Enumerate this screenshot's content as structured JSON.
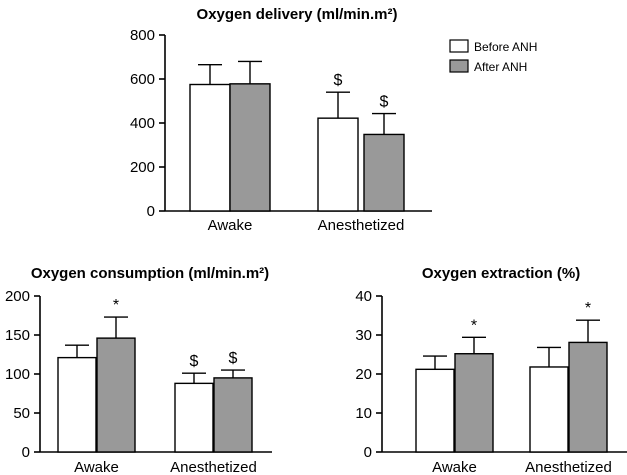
{
  "legend": {
    "series": [
      {
        "name": "Before ANH",
        "color": "#ffffff"
      },
      {
        "name": "After ANH",
        "color": "#999999"
      }
    ]
  },
  "chart_data": [
    {
      "type": "bar",
      "title": "Oxygen delivery (ml/min.m²)",
      "categories": [
        "Awake",
        "Anesthetized"
      ],
      "ylim": [
        0,
        800
      ],
      "yticks": [
        0,
        200,
        400,
        600,
        800
      ],
      "series": [
        {
          "name": "Before ANH",
          "values": [
            575,
            422
          ],
          "errors": [
            90,
            118
          ],
          "annotations": [
            "",
            "$"
          ]
        },
        {
          "name": "After ANH",
          "values": [
            578,
            348
          ],
          "errors": [
            102,
            95
          ],
          "annotations": [
            "",
            "$"
          ]
        }
      ]
    },
    {
      "type": "bar",
      "title": "Oxygen consumption (ml/min.m²)",
      "categories": [
        "Awake",
        "Anesthetized"
      ],
      "ylim": [
        0,
        200
      ],
      "yticks": [
        0,
        50,
        100,
        150,
        200
      ],
      "series": [
        {
          "name": "Before ANH",
          "values": [
            121,
            88
          ],
          "errors": [
            16,
            13
          ],
          "annotations": [
            "",
            "$"
          ]
        },
        {
          "name": "After ANH",
          "values": [
            146,
            95
          ],
          "errors": [
            27,
            10
          ],
          "annotations": [
            "*",
            "$"
          ]
        }
      ]
    },
    {
      "type": "bar",
      "title": "Oxygen extraction (%)",
      "categories": [
        "Awake",
        "Anesthetized"
      ],
      "ylim": [
        0,
        40
      ],
      "yticks": [
        0,
        10,
        20,
        30,
        40
      ],
      "series": [
        {
          "name": "Before ANH",
          "values": [
            21.2,
            21.8
          ],
          "errors": [
            3.4,
            5.0
          ],
          "annotations": [
            "",
            ""
          ]
        },
        {
          "name": "After ANH",
          "values": [
            25.2,
            28.1
          ],
          "errors": [
            4.2,
            5.7
          ],
          "annotations": [
            "*",
            "*"
          ]
        }
      ]
    }
  ]
}
